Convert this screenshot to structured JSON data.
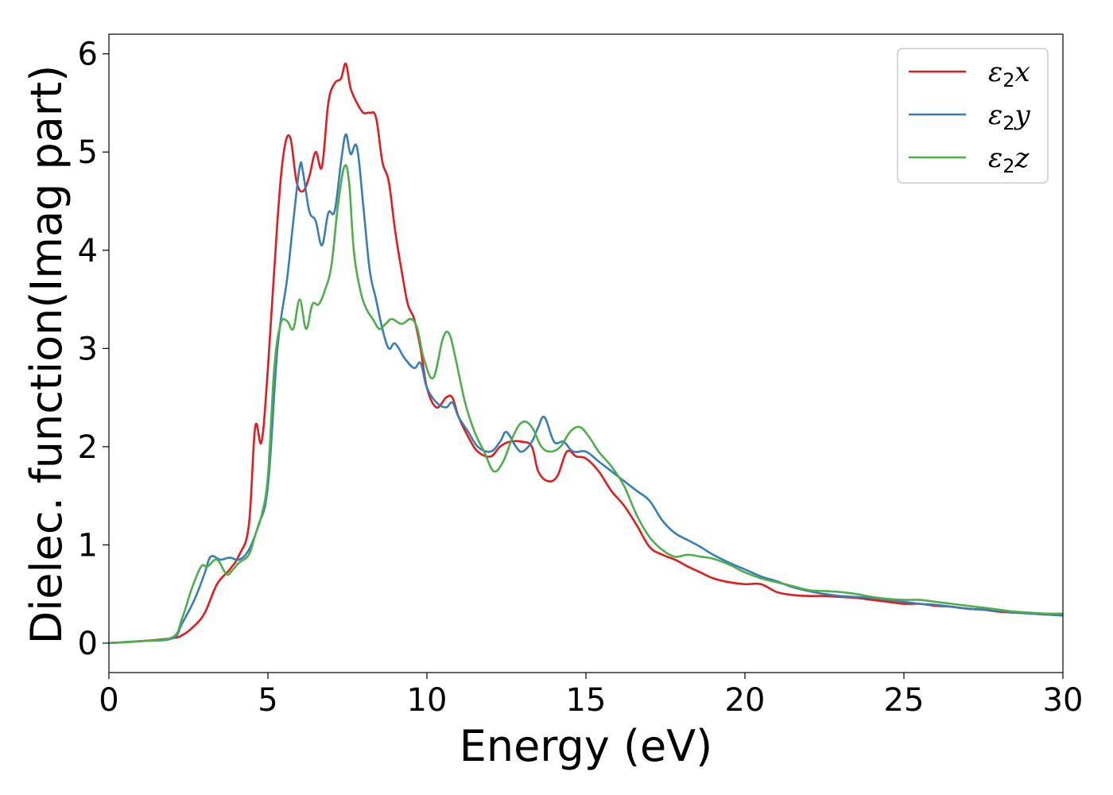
{
  "chart_data": {
    "type": "line",
    "title": "",
    "xlabel": "Energy (eV)",
    "ylabel": "Dielec. function(Imag part)",
    "xlim": [
      0,
      30
    ],
    "ylim": [
      -0.3,
      6.2
    ],
    "xticks": [
      0,
      5,
      10,
      15,
      20,
      25,
      30
    ],
    "xtick_labels": [
      "0",
      "5",
      "10",
      "15",
      "20",
      "25",
      "30"
    ],
    "yticks": [
      0,
      1,
      2,
      3,
      4,
      5,
      6
    ],
    "ytick_labels": [
      "0",
      "1",
      "2",
      "3",
      "4",
      "5",
      "6"
    ],
    "grid": false,
    "legend_position": "top-right",
    "series": [
      {
        "name": "ε2x",
        "legend_base": "ε",
        "legend_sub": "2",
        "legend_suffix": "x",
        "color": "#e41a1c",
        "x": [
          0,
          1,
          2,
          2.3,
          2.6,
          3.0,
          3.4,
          3.8,
          4.1,
          4.4,
          4.6,
          4.8,
          5.0,
          5.3,
          5.5,
          5.7,
          5.9,
          6.1,
          6.3,
          6.5,
          6.7,
          6.9,
          7.1,
          7.3,
          7.45,
          7.6,
          7.8,
          8.0,
          8.2,
          8.4,
          8.6,
          8.8,
          9.0,
          9.2,
          9.4,
          9.6,
          9.8,
          10.0,
          10.3,
          10.6,
          10.8,
          11.0,
          11.3,
          11.6,
          12.0,
          12.3,
          12.6,
          13.0,
          13.3,
          13.5,
          13.8,
          14.1,
          14.4,
          14.7,
          15.0,
          15.4,
          15.8,
          16.2,
          16.6,
          17.0,
          17.4,
          17.8,
          18.2,
          18.6,
          19.0,
          19.5,
          20.0,
          20.5,
          21.0,
          21.5,
          22.0,
          22.5,
          23.0,
          23.5,
          24.0,
          24.5,
          25.0,
          25.5,
          26.0,
          26.5,
          27.0,
          27.5,
          28.0,
          28.5,
          29.0,
          29.5,
          30.0
        ],
        "y": [
          0,
          0.02,
          0.05,
          0.08,
          0.15,
          0.3,
          0.6,
          0.75,
          0.9,
          1.2,
          2.2,
          2.05,
          2.8,
          4.3,
          5.0,
          5.15,
          4.7,
          4.6,
          4.75,
          5.0,
          4.85,
          5.5,
          5.7,
          5.75,
          5.9,
          5.65,
          5.5,
          5.4,
          5.4,
          5.35,
          4.9,
          4.7,
          4.2,
          3.8,
          3.45,
          3.3,
          3.0,
          2.6,
          2.4,
          2.5,
          2.5,
          2.3,
          2.1,
          1.95,
          1.9,
          2.0,
          2.05,
          2.05,
          2.0,
          1.75,
          1.65,
          1.7,
          1.95,
          1.9,
          1.88,
          1.75,
          1.55,
          1.4,
          1.2,
          0.98,
          0.9,
          0.85,
          0.78,
          0.72,
          0.66,
          0.62,
          0.6,
          0.6,
          0.52,
          0.49,
          0.48,
          0.48,
          0.47,
          0.46,
          0.44,
          0.42,
          0.4,
          0.4,
          0.38,
          0.37,
          0.35,
          0.34,
          0.32,
          0.31,
          0.3,
          0.29,
          0.29
        ]
      },
      {
        "name": "ε2y",
        "legend_base": "ε",
        "legend_sub": "2",
        "legend_suffix": "y",
        "color": "#377eb8",
        "x": [
          0,
          1,
          2,
          2.3,
          2.7,
          3.0,
          3.2,
          3.5,
          3.8,
          4.1,
          4.4,
          4.7,
          5.0,
          5.3,
          5.6,
          5.8,
          6.0,
          6.1,
          6.3,
          6.5,
          6.7,
          6.9,
          7.1,
          7.3,
          7.45,
          7.6,
          7.8,
          8.0,
          8.2,
          8.4,
          8.6,
          8.8,
          9.0,
          9.3,
          9.6,
          9.8,
          10.0,
          10.3,
          10.6,
          10.8,
          11.0,
          11.3,
          11.6,
          12.0,
          12.3,
          12.5,
          12.8,
          13.0,
          13.3,
          13.5,
          13.7,
          14.0,
          14.3,
          14.6,
          15.0,
          15.4,
          15.8,
          16.2,
          16.6,
          17.0,
          17.4,
          17.8,
          18.2,
          18.6,
          19.0,
          19.5,
          20.0,
          20.5,
          21.0,
          21.5,
          22.0,
          22.5,
          23.0,
          23.5,
          24.0,
          24.5,
          25.0,
          25.5,
          26.0,
          26.5,
          27.0,
          27.5,
          28.0,
          28.5,
          29.0,
          29.5,
          30.0
        ],
        "y": [
          0,
          0.02,
          0.05,
          0.2,
          0.45,
          0.7,
          0.88,
          0.85,
          0.87,
          0.85,
          0.95,
          1.2,
          1.6,
          3.0,
          3.7,
          4.3,
          4.85,
          4.8,
          4.4,
          4.3,
          4.05,
          4.38,
          4.4,
          4.9,
          5.18,
          4.98,
          5.05,
          4.45,
          3.8,
          3.5,
          3.2,
          3.0,
          3.05,
          2.9,
          2.8,
          2.85,
          2.6,
          2.45,
          2.4,
          2.45,
          2.3,
          2.15,
          2.0,
          1.95,
          2.05,
          2.15,
          2.0,
          1.95,
          2.05,
          2.2,
          2.3,
          2.05,
          2.05,
          1.95,
          1.95,
          1.85,
          1.75,
          1.65,
          1.55,
          1.45,
          1.25,
          1.12,
          1.05,
          0.98,
          0.9,
          0.82,
          0.75,
          0.68,
          0.63,
          0.57,
          0.53,
          0.5,
          0.48,
          0.47,
          0.46,
          0.44,
          0.42,
          0.4,
          0.39,
          0.37,
          0.35,
          0.34,
          0.33,
          0.31,
          0.3,
          0.29,
          0.28
        ]
      },
      {
        "name": "ε2z",
        "legend_base": "ε",
        "legend_sub": "2",
        "legend_suffix": "z",
        "color": "#4daf4a",
        "x": [
          0,
          1,
          2,
          2.3,
          2.6,
          2.9,
          3.1,
          3.4,
          3.7,
          3.9,
          4.1,
          4.4,
          4.6,
          4.8,
          5.0,
          5.2,
          5.4,
          5.6,
          5.8,
          6.0,
          6.2,
          6.4,
          6.6,
          6.8,
          7.0,
          7.2,
          7.4,
          7.55,
          7.7,
          7.9,
          8.1,
          8.3,
          8.5,
          8.7,
          8.9,
          9.2,
          9.5,
          9.7,
          9.9,
          10.2,
          10.5,
          10.7,
          10.9,
          11.2,
          11.5,
          11.8,
          12.1,
          12.4,
          12.7,
          13.0,
          13.3,
          13.6,
          13.9,
          14.2,
          14.5,
          14.8,
          15.1,
          15.4,
          15.8,
          16.2,
          16.6,
          17.0,
          17.4,
          17.8,
          18.2,
          18.6,
          19.0,
          19.5,
          20.0,
          20.5,
          21.0,
          21.5,
          22.0,
          22.5,
          23.0,
          23.5,
          24.0,
          24.5,
          25.0,
          25.5,
          26.0,
          26.5,
          27.0,
          27.5,
          28.0,
          28.5,
          29.0,
          29.5,
          30.0
        ],
        "y": [
          0,
          0.02,
          0.06,
          0.25,
          0.55,
          0.78,
          0.78,
          0.85,
          0.7,
          0.75,
          0.82,
          0.9,
          1.1,
          1.3,
          1.7,
          2.8,
          3.25,
          3.28,
          3.2,
          3.5,
          3.2,
          3.45,
          3.45,
          3.6,
          3.85,
          4.45,
          4.85,
          4.7,
          4.0,
          3.6,
          3.4,
          3.3,
          3.2,
          3.25,
          3.3,
          3.25,
          3.3,
          3.2,
          2.9,
          2.7,
          3.1,
          3.15,
          2.9,
          2.45,
          2.15,
          1.95,
          1.75,
          1.85,
          2.1,
          2.25,
          2.2,
          2.0,
          1.95,
          2.0,
          2.15,
          2.2,
          2.1,
          1.95,
          1.8,
          1.6,
          1.3,
          1.08,
          0.95,
          0.88,
          0.9,
          0.88,
          0.86,
          0.8,
          0.72,
          0.66,
          0.62,
          0.58,
          0.54,
          0.53,
          0.52,
          0.5,
          0.47,
          0.45,
          0.44,
          0.44,
          0.42,
          0.4,
          0.38,
          0.36,
          0.34,
          0.32,
          0.31,
          0.3,
          0.3
        ]
      }
    ]
  }
}
